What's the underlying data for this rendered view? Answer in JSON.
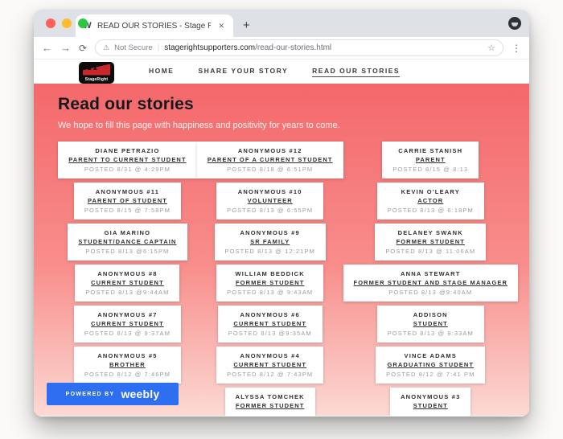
{
  "browser": {
    "tab": {
      "title": "READ OUR STORIES - Stage R",
      "favicon_letter": "W"
    },
    "icons": {
      "back": "←",
      "forward": "→",
      "reload": "⟳",
      "warning": "⚠",
      "separator": "|",
      "star": "☆",
      "menu": "⋮",
      "tab_close": "✕",
      "new_tab": "+"
    },
    "url": {
      "security_label": "Not Secure",
      "host": "stagerightsupporters.com",
      "path": "/read-our-stories.html"
    }
  },
  "site": {
    "logo_text": "StageRight",
    "logo_figures": "♟♟",
    "nav": [
      {
        "label": "HOME",
        "active": false
      },
      {
        "label": "SHARE YOUR STORY",
        "active": false
      },
      {
        "label": "READ OUR STORIES",
        "active": true
      }
    ],
    "heading": "Read our stories",
    "subtitle": "We hope to fill this page with happiness and positivity for years to come.",
    "stories": [
      [
        {
          "name": "DIANE PETRAZIO",
          "role": "PARENT TO CURRENT STUDENT",
          "posted": "POSTED 8/31 @ 4:29PM"
        },
        {
          "name": "ANONYMOUS #12",
          "role": "PARENT OF A CURRENT STUDENT",
          "posted": "POSTED 8/18 @ 6:51PM"
        },
        {
          "name": "CARRIE STANISH",
          "role": "PARENT",
          "posted": "POSTED 8/15 @ 8:13"
        }
      ],
      [
        {
          "name": "ANONYMOUS #11",
          "role": "PARENT OF STUDENT",
          "posted": "POSTED 8/15 @ 7:58PM"
        },
        {
          "name": "ANONYMOUS #10",
          "role": "VOLUNTEER",
          "posted": "POSTED 8/13 @ 6:55PM"
        },
        {
          "name": "KEVIN O'LEARY",
          "role": "ACTOR",
          "posted": "POSTED 8/13 @ 6:18PM"
        }
      ],
      [
        {
          "name": "GIA MARINO",
          "role": "STUDENT/DANCE CAPTAIN",
          "posted": "POSTED 8/13 @6:15PM"
        },
        {
          "name": "ANONYMOUS #9",
          "role": "SR FAMILY",
          "posted": "POSTED 8/13 @ 12:21PM"
        },
        {
          "name": "DELANEY SWANK",
          "role": "FORMER STUDENT",
          "posted": "POSTED 8/13 @ 11:06AM"
        }
      ],
      [
        {
          "name": "ANONYMOUS #8",
          "role": "CURRENT STUDENT",
          "posted": "POSTED 8/13 @9:44AM"
        },
        {
          "name": "WILLIAM BEDDICK",
          "role": "FORMER STUDENT",
          "posted": "POSTED 8/13 @ 9:43AM"
        },
        {
          "name": "ANNA STEWART",
          "role": "FORMER STUDENT AND STAGE MANAGER",
          "posted": "POSTED 8/13 @9:40AM"
        }
      ],
      [
        {
          "name": "ANONYMOUS #7",
          "role": "CURRENT STUDENT",
          "posted": "POSTED 8/13 @ 9:37AM"
        },
        {
          "name": "ANONYMOUS #6",
          "role": "CURRENT STUDENT",
          "posted": "POSTED 8/13 @9:35AM"
        },
        {
          "name": "ADDISON",
          "role": "STUDENT",
          "posted": "POSTED 8/13 @ 9:33AM"
        }
      ],
      [
        {
          "name": "ANONYMOUS #5",
          "role": "BROTHER",
          "posted": "POSTED 8/12 @ 7:46PM"
        },
        {
          "name": "ANONYMOUS #4",
          "role": "CURRENT STUDENT",
          "posted": "POSTED 8/12 @ 7:43PM"
        },
        {
          "name": "VINCE ADAMS",
          "role": "GRADUATING STUDENT",
          "posted": "POSTED 8/12 @ 7:41 PM"
        }
      ],
      [
        null,
        {
          "name": "ALYSSA TOMCHEK",
          "role": "FORMER STUDENT",
          "posted": ""
        },
        {
          "name": "ANONYMOUS #3",
          "role": "STUDENT",
          "posted": ""
        }
      ]
    ],
    "powered_by": {
      "label": "POWERED BY",
      "brand": "weebly"
    }
  },
  "colors": {
    "hero_gradient_top": "#f4686b",
    "hero_gradient_bottom": "#fcd9d3",
    "weebly_blue": "#2e6ff2",
    "logo_red": "#c9252c",
    "traffic_red": "#ff5f57",
    "traffic_yellow": "#febc2e",
    "traffic_green": "#28c840",
    "tabstrip_gray": "#dee1e6"
  }
}
